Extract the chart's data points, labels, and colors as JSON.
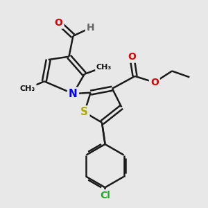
{
  "bg_color": "#e8e8e8",
  "bond_color": "#1a1a1a",
  "bond_width": 1.8,
  "atom_colors": {
    "O": "#dd0000",
    "N": "#0000ee",
    "S": "#aaaa00",
    "Cl": "#22aa22",
    "C": "#111111",
    "H": "#666666"
  },
  "font_size": 9,
  "fig_size": [
    3.0,
    3.0
  ],
  "dpi": 100
}
